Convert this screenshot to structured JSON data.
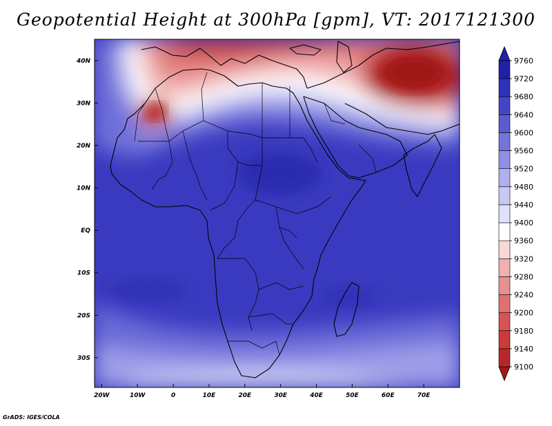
{
  "title": "Geopotential Height at 300hPa [gpm], VT: 2017121300",
  "footer": "GrADS: IGES/COLA",
  "map": {
    "lon_labels": [
      "20W",
      "10W",
      "0",
      "10E",
      "20E",
      "30E",
      "40E",
      "50E",
      "60E",
      "70E"
    ],
    "lat_labels": [
      "40N",
      "30N",
      "20N",
      "10N",
      "EQ",
      "10S",
      "20S",
      "30S"
    ],
    "lon_range": [
      -22,
      80
    ],
    "lat_range": [
      -37,
      45
    ]
  },
  "colorbar": {
    "levels": [
      9100,
      9140,
      9180,
      9200,
      9240,
      9280,
      9320,
      9360,
      9400,
      9440,
      9480,
      9520,
      9560,
      9600,
      9640,
      9680,
      9720,
      9760
    ],
    "colors": [
      "#a01818",
      "#b82828",
      "#cc3a3a",
      "#d85454",
      "#e07070",
      "#e89090",
      "#f0b0b0",
      "#f8d8d8",
      "#ffffff",
      "#e0e0fa",
      "#c8c8f5",
      "#b0b0ef",
      "#9090e6",
      "#7474dc",
      "#5a5ad2",
      "#4444c8",
      "#3030bc",
      "#2020a8"
    ]
  }
}
